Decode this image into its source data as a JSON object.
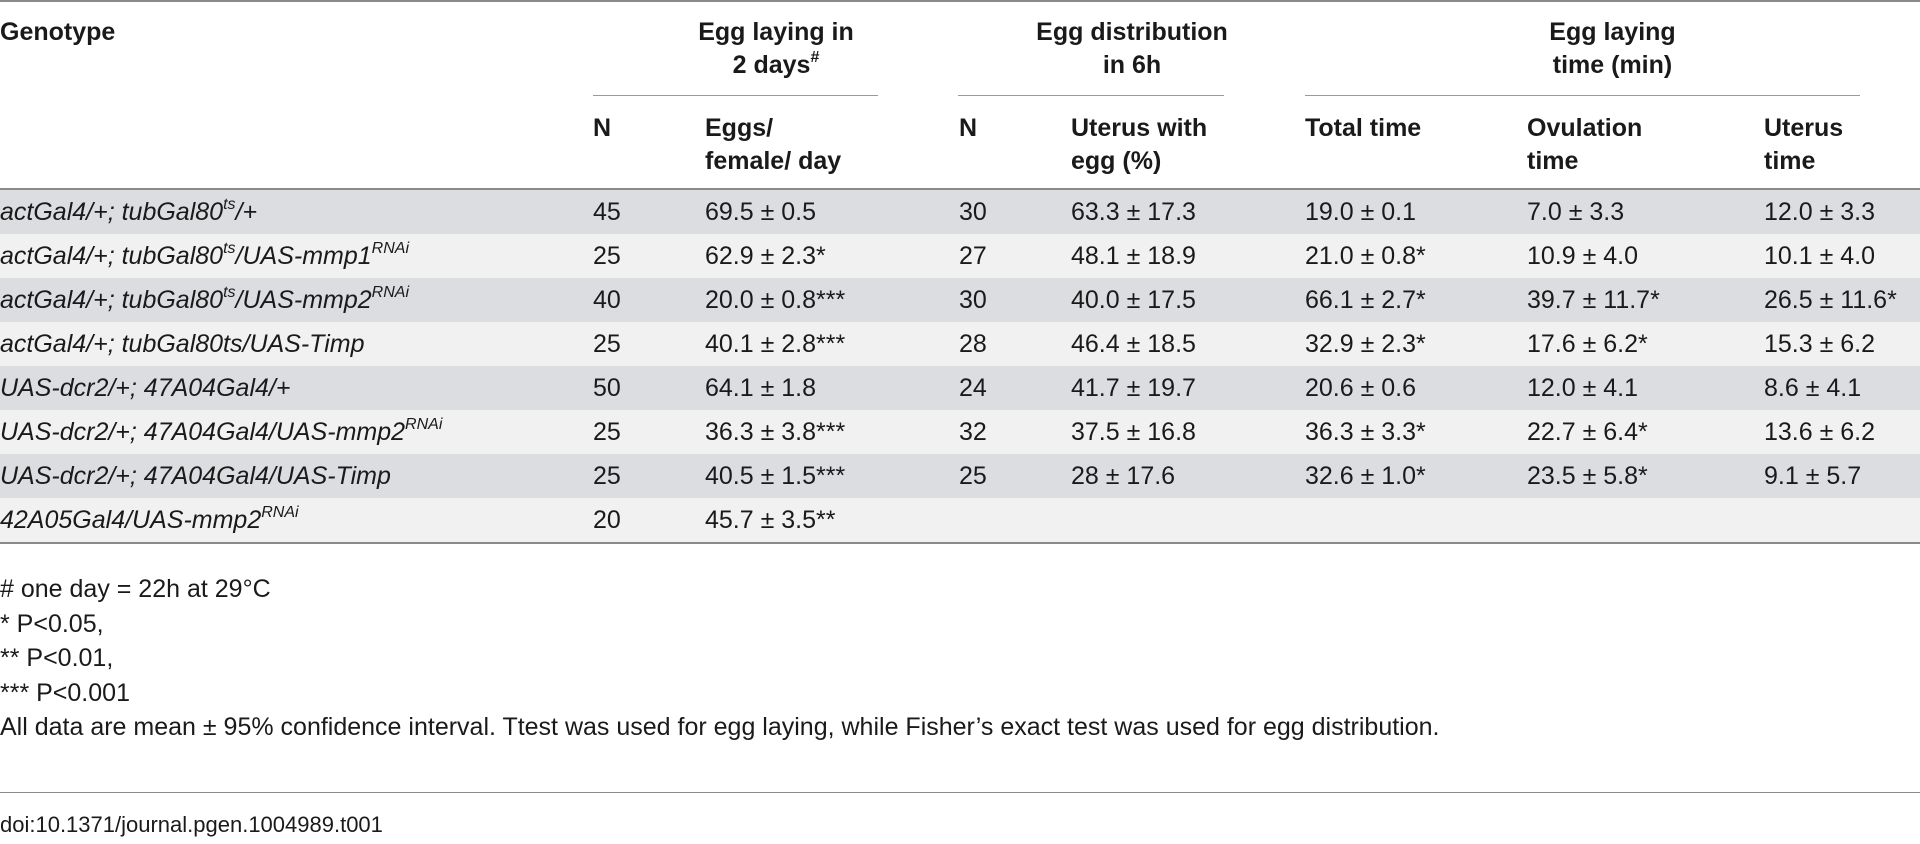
{
  "header": {
    "genotype": "Genotype",
    "group1_line1": "Egg laying in",
    "group1_line2": "2 days",
    "group1_sup": "#",
    "group2_line1": "Egg distribution",
    "group2_line2": "in 6h",
    "group3_line1": "Egg laying",
    "group3_line2": "time (min)",
    "sub": {
      "n1": "N",
      "eggs_line1": "Eggs/",
      "eggs_line2": "female/ day",
      "n2": "N",
      "uterus_line1": "Uterus with",
      "uterus_line2": "egg (%)",
      "total": "Total time",
      "ovulation_line1": "Ovulation",
      "ovulation_line2": "time",
      "uterustime_line1": "Uterus",
      "uterustime_line2": "time"
    }
  },
  "rows": [
    {
      "g_main": "actGal4/+; tubGal80",
      "g_sup": "ts",
      "g_tail": "/+",
      "g_sup2": "",
      "n1": "45",
      "eggs": "69.5 ± 0.5",
      "n2": "30",
      "uterus": "63.3 ± 17.3",
      "total": "19.0 ± 0.1",
      "ovulation": "7.0 ± 3.3",
      "utime": "12.0 ± 3.3"
    },
    {
      "g_main": "actGal4/+; tubGal80",
      "g_sup": "ts",
      "g_tail": "/UAS-mmp1",
      "g_sup2": "RNAi",
      "n1": "25",
      "eggs": "62.9 ± 2.3*",
      "n2": "27",
      "uterus": "48.1 ± 18.9",
      "total": "21.0 ± 0.8*",
      "ovulation": "10.9 ± 4.0",
      "utime": "10.1 ± 4.0"
    },
    {
      "g_main": "actGal4/+; tubGal80",
      "g_sup": "ts",
      "g_tail": "/UAS-mmp2",
      "g_sup2": "RNAi",
      "n1": "40",
      "eggs": "20.0 ± 0.8***",
      "n2": "30",
      "uterus": "40.0 ± 17.5",
      "total": "66.1 ± 2.7*",
      "ovulation": "39.7 ± 11.7*",
      "utime": "26.5 ± 11.6*"
    },
    {
      "g_main": "actGal4/+; tubGal80ts/UAS-Timp",
      "g_sup": "",
      "g_tail": "",
      "g_sup2": "",
      "n1": "25",
      "eggs": "40.1 ± 2.8***",
      "n2": "28",
      "uterus": "46.4 ± 18.5",
      "total": "32.9 ± 2.3*",
      "ovulation": "17.6 ± 6.2*",
      "utime": "15.3 ± 6.2"
    },
    {
      "g_main": "UAS-dcr2/+; 47A04Gal4/+",
      "g_sup": "",
      "g_tail": "",
      "g_sup2": "",
      "n1": "50",
      "eggs": "64.1 ± 1.8",
      "n2": "24",
      "uterus": "41.7 ± 19.7",
      "total": "20.6 ± 0.6",
      "ovulation": "12.0 ± 4.1",
      "utime": "8.6 ± 4.1"
    },
    {
      "g_main": "UAS-dcr2/+; 47A04Gal4/UAS-mmp2",
      "g_sup": "RNAi",
      "g_tail": "",
      "g_sup2": "",
      "n1": "25",
      "eggs": "36.3 ± 3.8***",
      "n2": "32",
      "uterus": "37.5 ± 16.8",
      "total": "36.3 ± 3.3*",
      "ovulation": "22.7 ± 6.4*",
      "utime": "13.6 ± 6.2"
    },
    {
      "g_main": "UAS-dcr2/+; 47A04Gal4/UAS-Timp",
      "g_sup": "",
      "g_tail": "",
      "g_sup2": "",
      "n1": "25",
      "eggs": "40.5 ± 1.5***",
      "n2": "25",
      "uterus": "28 ± 17.6",
      "total": "32.6 ± 1.0*",
      "ovulation": "23.5 ± 5.8*",
      "utime": "9.1 ± 5.7"
    },
    {
      "g_main": "42A05Gal4/UAS-mmp2",
      "g_sup": "RNAi",
      "g_tail": "",
      "g_sup2": "",
      "n1": "20",
      "eggs": "45.7 ± 3.5**",
      "n2": "",
      "uterus": "",
      "total": "",
      "ovulation": "",
      "utime": ""
    }
  ],
  "notes": [
    "# one day = 22h at 29°C",
    "* P<0.05,",
    "** P<0.01,",
    "*** P<0.001",
    "All data are mean ± 95% confidence interval. Ttest was used for egg laying, while Fisher’s exact test was used for egg distribution."
  ],
  "doi": "doi:10.1371/journal.pgen.1004989.t001"
}
